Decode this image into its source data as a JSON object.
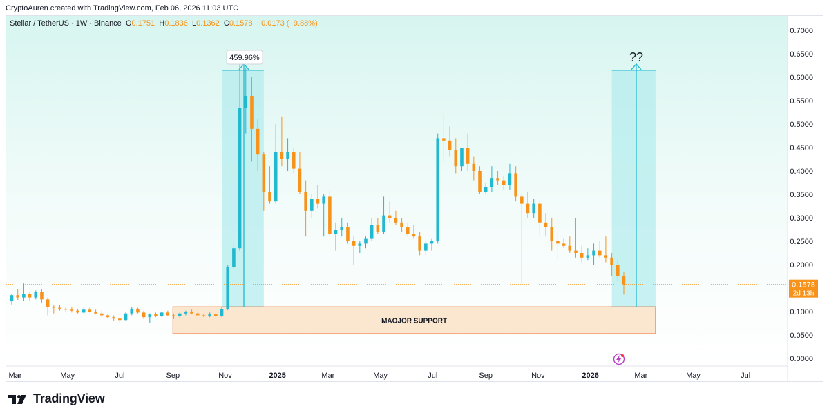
{
  "header": {
    "credit": "CryptoAuren created with TradingView.com, Feb 06, 2026 11:03 UTC"
  },
  "legend": {
    "symbol": "Stellar / TetherUS · 1W · Binance",
    "o_label": "O",
    "o_value": "0.1751",
    "h_label": "H",
    "h_value": "0.1836",
    "l_label": "L",
    "l_value": "0.1362",
    "c_label": "C",
    "c_value": "0.1578",
    "change": "−0.0173 (−9.88%)"
  },
  "footer": {
    "brand": "TradingView"
  },
  "colors": {
    "up": "#22b8cf",
    "down": "#f7931a",
    "box": "#b5ecee",
    "support_fill": "#fbe6d0",
    "support_border": "#f28c52",
    "price_tag": "#f7931a"
  },
  "chart_data": {
    "type": "candlestick",
    "title": "Stellar / TetherUS · 1W · Binance",
    "ylim": [
      0,
      0.72
    ],
    "y_ticks": [
      "0.0000",
      "0.0500",
      "0.1000",
      "0.1500",
      "0.2000",
      "0.2500",
      "0.3000",
      "0.3500",
      "0.4000",
      "0.4500",
      "0.5000",
      "0.5500",
      "0.6000",
      "0.6500",
      "0.7000"
    ],
    "x_ticks": [
      {
        "label": "Mar",
        "date": "2024-03-01"
      },
      {
        "label": "May",
        "date": "2024-05-01"
      },
      {
        "label": "Jul",
        "date": "2024-07-01"
      },
      {
        "label": "Sep",
        "date": "2024-09-01"
      },
      {
        "label": "Nov",
        "date": "2024-11-01"
      },
      {
        "label": "2025",
        "date": "2025-01-01",
        "bold": true
      },
      {
        "label": "Mar",
        "date": "2025-03-01"
      },
      {
        "label": "May",
        "date": "2025-05-01"
      },
      {
        "label": "Jul",
        "date": "2025-07-01"
      },
      {
        "label": "Sep",
        "date": "2025-09-01"
      },
      {
        "label": "Nov",
        "date": "2025-11-01"
      },
      {
        "label": "2026",
        "date": "2026-01-01",
        "bold": true
      },
      {
        "label": "Mar",
        "date": "2026-03-01"
      },
      {
        "label": "May",
        "date": "2026-05-01"
      },
      {
        "label": "Jul",
        "date": "2026-07-01"
      }
    ],
    "last_price": {
      "value": "0.1578",
      "countdown": "2d 13h"
    },
    "annotations": {
      "pct_label": "459.96%",
      "question": "??",
      "support_label": "MAOJOR SUPPORT",
      "box1": {
        "x0": "2024-10-28",
        "x1": "2024-12-16",
        "y0": 0.11,
        "y1": 0.615
      },
      "box2": {
        "x0": "2026-01-26",
        "x1": "2026-03-18",
        "y0": 0.11,
        "y1": 0.615
      },
      "support": {
        "x0": "2024-09-01",
        "x1": "2026-03-18",
        "y0": 0.053,
        "y1": 0.11
      }
    },
    "candles": [
      {
        "t": "2024-02-26",
        "o": 0.122,
        "h": 0.138,
        "l": 0.115,
        "c": 0.135
      },
      {
        "t": "2024-03-04",
        "o": 0.135,
        "h": 0.148,
        "l": 0.125,
        "c": 0.13
      },
      {
        "t": "2024-03-11",
        "o": 0.13,
        "h": 0.16,
        "l": 0.122,
        "c": 0.138
      },
      {
        "t": "2024-03-18",
        "o": 0.138,
        "h": 0.142,
        "l": 0.122,
        "c": 0.13
      },
      {
        "t": "2024-03-25",
        "o": 0.13,
        "h": 0.145,
        "l": 0.126,
        "c": 0.142
      },
      {
        "t": "2024-04-01",
        "o": 0.142,
        "h": 0.148,
        "l": 0.118,
        "c": 0.126
      },
      {
        "t": "2024-04-08",
        "o": 0.126,
        "h": 0.13,
        "l": 0.092,
        "c": 0.11
      },
      {
        "t": "2024-04-15",
        "o": 0.11,
        "h": 0.114,
        "l": 0.096,
        "c": 0.108
      },
      {
        "t": "2024-04-22",
        "o": 0.108,
        "h": 0.114,
        "l": 0.102,
        "c": 0.106
      },
      {
        "t": "2024-04-29",
        "o": 0.106,
        "h": 0.11,
        "l": 0.1,
        "c": 0.104
      },
      {
        "t": "2024-05-06",
        "o": 0.104,
        "h": 0.11,
        "l": 0.098,
        "c": 0.102
      },
      {
        "t": "2024-05-13",
        "o": 0.102,
        "h": 0.106,
        "l": 0.096,
        "c": 0.098
      },
      {
        "t": "2024-05-20",
        "o": 0.098,
        "h": 0.108,
        "l": 0.096,
        "c": 0.104
      },
      {
        "t": "2024-05-27",
        "o": 0.104,
        "h": 0.108,
        "l": 0.098,
        "c": 0.1
      },
      {
        "t": "2024-06-03",
        "o": 0.1,
        "h": 0.104,
        "l": 0.094,
        "c": 0.096
      },
      {
        "t": "2024-06-10",
        "o": 0.096,
        "h": 0.102,
        "l": 0.088,
        "c": 0.092
      },
      {
        "t": "2024-06-17",
        "o": 0.092,
        "h": 0.094,
        "l": 0.085,
        "c": 0.088
      },
      {
        "t": "2024-06-24",
        "o": 0.088,
        "h": 0.092,
        "l": 0.081,
        "c": 0.085
      },
      {
        "t": "2024-07-01",
        "o": 0.085,
        "h": 0.088,
        "l": 0.076,
        "c": 0.082
      },
      {
        "t": "2024-07-08",
        "o": 0.082,
        "h": 0.1,
        "l": 0.08,
        "c": 0.096
      },
      {
        "t": "2024-07-15",
        "o": 0.096,
        "h": 0.11,
        "l": 0.092,
        "c": 0.106
      },
      {
        "t": "2024-07-22",
        "o": 0.106,
        "h": 0.108,
        "l": 0.096,
        "c": 0.098
      },
      {
        "t": "2024-07-29",
        "o": 0.098,
        "h": 0.102,
        "l": 0.084,
        "c": 0.088
      },
      {
        "t": "2024-08-05",
        "o": 0.088,
        "h": 0.096,
        "l": 0.076,
        "c": 0.094
      },
      {
        "t": "2024-08-12",
        "o": 0.094,
        "h": 0.098,
        "l": 0.088,
        "c": 0.09
      },
      {
        "t": "2024-08-19",
        "o": 0.09,
        "h": 0.1,
        "l": 0.088,
        "c": 0.098
      },
      {
        "t": "2024-08-26",
        "o": 0.098,
        "h": 0.102,
        "l": 0.09,
        "c": 0.092
      },
      {
        "t": "2024-09-02",
        "o": 0.092,
        "h": 0.096,
        "l": 0.084,
        "c": 0.09
      },
      {
        "t": "2024-09-09",
        "o": 0.09,
        "h": 0.098,
        "l": 0.088,
        "c": 0.096
      },
      {
        "t": "2024-09-16",
        "o": 0.096,
        "h": 0.102,
        "l": 0.092,
        "c": 0.1
      },
      {
        "t": "2024-09-23",
        "o": 0.1,
        "h": 0.104,
        "l": 0.094,
        "c": 0.096
      },
      {
        "t": "2024-09-30",
        "o": 0.096,
        "h": 0.1,
        "l": 0.09,
        "c": 0.092
      },
      {
        "t": "2024-10-07",
        "o": 0.092,
        "h": 0.096,
        "l": 0.088,
        "c": 0.09
      },
      {
        "t": "2024-10-14",
        "o": 0.09,
        "h": 0.098,
        "l": 0.088,
        "c": 0.094
      },
      {
        "t": "2024-10-21",
        "o": 0.094,
        "h": 0.096,
        "l": 0.088,
        "c": 0.09
      },
      {
        "t": "2024-10-28",
        "o": 0.09,
        "h": 0.11,
        "l": 0.088,
        "c": 0.105
      },
      {
        "t": "2024-11-04",
        "o": 0.105,
        "h": 0.2,
        "l": 0.103,
        "c": 0.195
      },
      {
        "t": "2024-11-11",
        "o": 0.195,
        "h": 0.245,
        "l": 0.19,
        "c": 0.235
      },
      {
        "t": "2024-11-18",
        "o": 0.235,
        "h": 0.635,
        "l": 0.23,
        "c": 0.535
      },
      {
        "t": "2024-11-25",
        "o": 0.535,
        "h": 0.62,
        "l": 0.48,
        "c": 0.56
      },
      {
        "t": "2024-12-02",
        "o": 0.56,
        "h": 0.6,
        "l": 0.42,
        "c": 0.49
      },
      {
        "t": "2024-12-09",
        "o": 0.49,
        "h": 0.51,
        "l": 0.4,
        "c": 0.435
      },
      {
        "t": "2024-12-16",
        "o": 0.435,
        "h": 0.44,
        "l": 0.315,
        "c": 0.355
      },
      {
        "t": "2024-12-23",
        "o": 0.355,
        "h": 0.41,
        "l": 0.33,
        "c": 0.335
      },
      {
        "t": "2024-12-30",
        "o": 0.335,
        "h": 0.5,
        "l": 0.33,
        "c": 0.44
      },
      {
        "t": "2025-01-06",
        "o": 0.44,
        "h": 0.515,
        "l": 0.41,
        "c": 0.425
      },
      {
        "t": "2025-01-13",
        "o": 0.425,
        "h": 0.47,
        "l": 0.4,
        "c": 0.44
      },
      {
        "t": "2025-01-20",
        "o": 0.44,
        "h": 0.45,
        "l": 0.395,
        "c": 0.405
      },
      {
        "t": "2025-01-27",
        "o": 0.405,
        "h": 0.44,
        "l": 0.35,
        "c": 0.355
      },
      {
        "t": "2025-02-03",
        "o": 0.355,
        "h": 0.38,
        "l": 0.26,
        "c": 0.315
      },
      {
        "t": "2025-02-10",
        "o": 0.315,
        "h": 0.35,
        "l": 0.3,
        "c": 0.34
      },
      {
        "t": "2025-02-17",
        "o": 0.34,
        "h": 0.37,
        "l": 0.32,
        "c": 0.33
      },
      {
        "t": "2025-02-24",
        "o": 0.33,
        "h": 0.35,
        "l": 0.26,
        "c": 0.345
      },
      {
        "t": "2025-03-03",
        "o": 0.345,
        "h": 0.36,
        "l": 0.26,
        "c": 0.265
      },
      {
        "t": "2025-03-10",
        "o": 0.265,
        "h": 0.29,
        "l": 0.23,
        "c": 0.275
      },
      {
        "t": "2025-03-17",
        "o": 0.275,
        "h": 0.3,
        "l": 0.26,
        "c": 0.28
      },
      {
        "t": "2025-03-24",
        "o": 0.28,
        "h": 0.29,
        "l": 0.245,
        "c": 0.25
      },
      {
        "t": "2025-03-31",
        "o": 0.25,
        "h": 0.26,
        "l": 0.2,
        "c": 0.24
      },
      {
        "t": "2025-04-07",
        "o": 0.24,
        "h": 0.25,
        "l": 0.225,
        "c": 0.245
      },
      {
        "t": "2025-04-14",
        "o": 0.245,
        "h": 0.26,
        "l": 0.235,
        "c": 0.255
      },
      {
        "t": "2025-04-21",
        "o": 0.255,
        "h": 0.3,
        "l": 0.25,
        "c": 0.285
      },
      {
        "t": "2025-04-28",
        "o": 0.285,
        "h": 0.3,
        "l": 0.265,
        "c": 0.27
      },
      {
        "t": "2025-05-05",
        "o": 0.27,
        "h": 0.345,
        "l": 0.265,
        "c": 0.305
      },
      {
        "t": "2025-05-12",
        "o": 0.305,
        "h": 0.335,
        "l": 0.29,
        "c": 0.3
      },
      {
        "t": "2025-05-19",
        "o": 0.3,
        "h": 0.315,
        "l": 0.285,
        "c": 0.29
      },
      {
        "t": "2025-05-26",
        "o": 0.29,
        "h": 0.3,
        "l": 0.27,
        "c": 0.28
      },
      {
        "t": "2025-06-02",
        "o": 0.28,
        "h": 0.29,
        "l": 0.26,
        "c": 0.265
      },
      {
        "t": "2025-06-09",
        "o": 0.265,
        "h": 0.285,
        "l": 0.255,
        "c": 0.26
      },
      {
        "t": "2025-06-16",
        "o": 0.26,
        "h": 0.27,
        "l": 0.22,
        "c": 0.23
      },
      {
        "t": "2025-06-23",
        "o": 0.23,
        "h": 0.25,
        "l": 0.22,
        "c": 0.245
      },
      {
        "t": "2025-06-30",
        "o": 0.245,
        "h": 0.255,
        "l": 0.23,
        "c": 0.25
      },
      {
        "t": "2025-07-07",
        "o": 0.25,
        "h": 0.48,
        "l": 0.245,
        "c": 0.47
      },
      {
        "t": "2025-07-14",
        "o": 0.47,
        "h": 0.52,
        "l": 0.42,
        "c": 0.465
      },
      {
        "t": "2025-07-21",
        "o": 0.465,
        "h": 0.495,
        "l": 0.43,
        "c": 0.445
      },
      {
        "t": "2025-07-28",
        "o": 0.445,
        "h": 0.47,
        "l": 0.395,
        "c": 0.41
      },
      {
        "t": "2025-08-04",
        "o": 0.41,
        "h": 0.45,
        "l": 0.4,
        "c": 0.45
      },
      {
        "t": "2025-08-11",
        "o": 0.45,
        "h": 0.48,
        "l": 0.4,
        "c": 0.415
      },
      {
        "t": "2025-08-18",
        "o": 0.415,
        "h": 0.43,
        "l": 0.38,
        "c": 0.4
      },
      {
        "t": "2025-08-25",
        "o": 0.4,
        "h": 0.41,
        "l": 0.35,
        "c": 0.355
      },
      {
        "t": "2025-09-01",
        "o": 0.355,
        "h": 0.375,
        "l": 0.35,
        "c": 0.365
      },
      {
        "t": "2025-09-08",
        "o": 0.365,
        "h": 0.41,
        "l": 0.355,
        "c": 0.385
      },
      {
        "t": "2025-09-15",
        "o": 0.385,
        "h": 0.4,
        "l": 0.37,
        "c": 0.38
      },
      {
        "t": "2025-09-22",
        "o": 0.38,
        "h": 0.39,
        "l": 0.36,
        "c": 0.37
      },
      {
        "t": "2025-09-29",
        "o": 0.37,
        "h": 0.415,
        "l": 0.36,
        "c": 0.395
      },
      {
        "t": "2025-10-06",
        "o": 0.395,
        "h": 0.41,
        "l": 0.335,
        "c": 0.345
      },
      {
        "t": "2025-10-13",
        "o": 0.345,
        "h": 0.35,
        "l": 0.16,
        "c": 0.33
      },
      {
        "t": "2025-10-20",
        "o": 0.33,
        "h": 0.355,
        "l": 0.3,
        "c": 0.31
      },
      {
        "t": "2025-10-27",
        "o": 0.31,
        "h": 0.34,
        "l": 0.3,
        "c": 0.33
      },
      {
        "t": "2025-11-03",
        "o": 0.33,
        "h": 0.335,
        "l": 0.26,
        "c": 0.29
      },
      {
        "t": "2025-11-10",
        "o": 0.29,
        "h": 0.31,
        "l": 0.26,
        "c": 0.28
      },
      {
        "t": "2025-11-17",
        "o": 0.28,
        "h": 0.3,
        "l": 0.23,
        "c": 0.25
      },
      {
        "t": "2025-11-24",
        "o": 0.25,
        "h": 0.27,
        "l": 0.21,
        "c": 0.245
      },
      {
        "t": "2025-12-01",
        "o": 0.245,
        "h": 0.255,
        "l": 0.235,
        "c": 0.24
      },
      {
        "t": "2025-12-08",
        "o": 0.24,
        "h": 0.26,
        "l": 0.225,
        "c": 0.23
      },
      {
        "t": "2025-12-15",
        "o": 0.23,
        "h": 0.3,
        "l": 0.215,
        "c": 0.225
      },
      {
        "t": "2025-12-22",
        "o": 0.225,
        "h": 0.24,
        "l": 0.205,
        "c": 0.215
      },
      {
        "t": "2025-12-29",
        "o": 0.215,
        "h": 0.235,
        "l": 0.21,
        "c": 0.22
      },
      {
        "t": "2026-01-05",
        "o": 0.22,
        "h": 0.245,
        "l": 0.2,
        "c": 0.23
      },
      {
        "t": "2026-01-12",
        "o": 0.23,
        "h": 0.25,
        "l": 0.215,
        "c": 0.22
      },
      {
        "t": "2026-01-19",
        "o": 0.22,
        "h": 0.26,
        "l": 0.205,
        "c": 0.215
      },
      {
        "t": "2026-01-26",
        "o": 0.215,
        "h": 0.225,
        "l": 0.175,
        "c": 0.2
      },
      {
        "t": "2026-02-02",
        "o": 0.2,
        "h": 0.21,
        "l": 0.165,
        "c": 0.175
      },
      {
        "t": "2026-02-09",
        "o": 0.1751,
        "h": 0.1836,
        "l": 0.1362,
        "c": 0.1578
      }
    ]
  }
}
